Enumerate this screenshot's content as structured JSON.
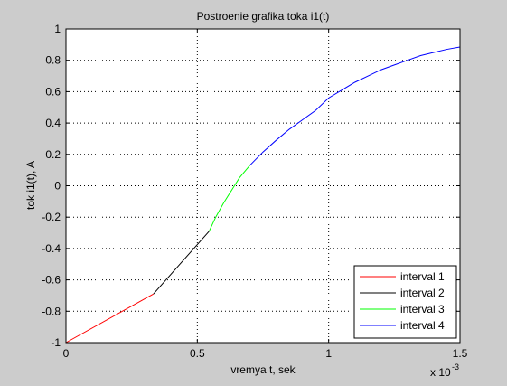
{
  "chart_data": {
    "type": "line",
    "title": "Postroenie grafika toka i1(t)",
    "xlabel": "vremya t, sek",
    "ylabel": "tok i1(t), A",
    "x_multiplier": "x 10",
    "x_exponent": "-3",
    "xlim": [
      0,
      1.5
    ],
    "ylim": [
      -1,
      1
    ],
    "x_ticks": [
      0,
      0.5,
      1,
      1.5
    ],
    "x_tick_labels": [
      "0",
      "0.5",
      "1",
      "1.5"
    ],
    "y_ticks": [
      -1,
      -0.8,
      -0.6,
      -0.4,
      -0.2,
      0,
      0.2,
      0.4,
      0.6,
      0.8,
      1
    ],
    "y_tick_labels": [
      "-1",
      "-0.8",
      "-0.6",
      "-0.4",
      "-0.2",
      "0",
      "0.2",
      "0.4",
      "0.6",
      "0.8",
      "1"
    ],
    "grid": true,
    "legend_position": "bottom-right",
    "series": [
      {
        "name": "interval 1",
        "color": "#ff0000",
        "x": [
          0,
          0.333
        ],
        "y": [
          -1.0,
          -0.69
        ]
      },
      {
        "name": "interval 2",
        "color": "#000000",
        "x": [
          0.333,
          0.545
        ],
        "y": [
          -0.69,
          -0.29
        ]
      },
      {
        "name": "interval 3",
        "color": "#00ff00",
        "x": [
          0.545,
          0.57,
          0.6,
          0.63,
          0.66,
          0.7
        ],
        "y": [
          -0.29,
          -0.2,
          -0.11,
          -0.03,
          0.05,
          0.13
        ]
      },
      {
        "name": "interval 4",
        "color": "#0000ff",
        "x": [
          0.7,
          0.75,
          0.8,
          0.85,
          0.9,
          0.95,
          1.0,
          1.05,
          1.1,
          1.15,
          1.2,
          1.25,
          1.3,
          1.35,
          1.4,
          1.45,
          1.5
        ],
        "y": [
          0.13,
          0.215,
          0.29,
          0.36,
          0.42,
          0.48,
          0.56,
          0.61,
          0.66,
          0.7,
          0.74,
          0.77,
          0.8,
          0.83,
          0.85,
          0.87,
          0.885
        ]
      }
    ]
  }
}
